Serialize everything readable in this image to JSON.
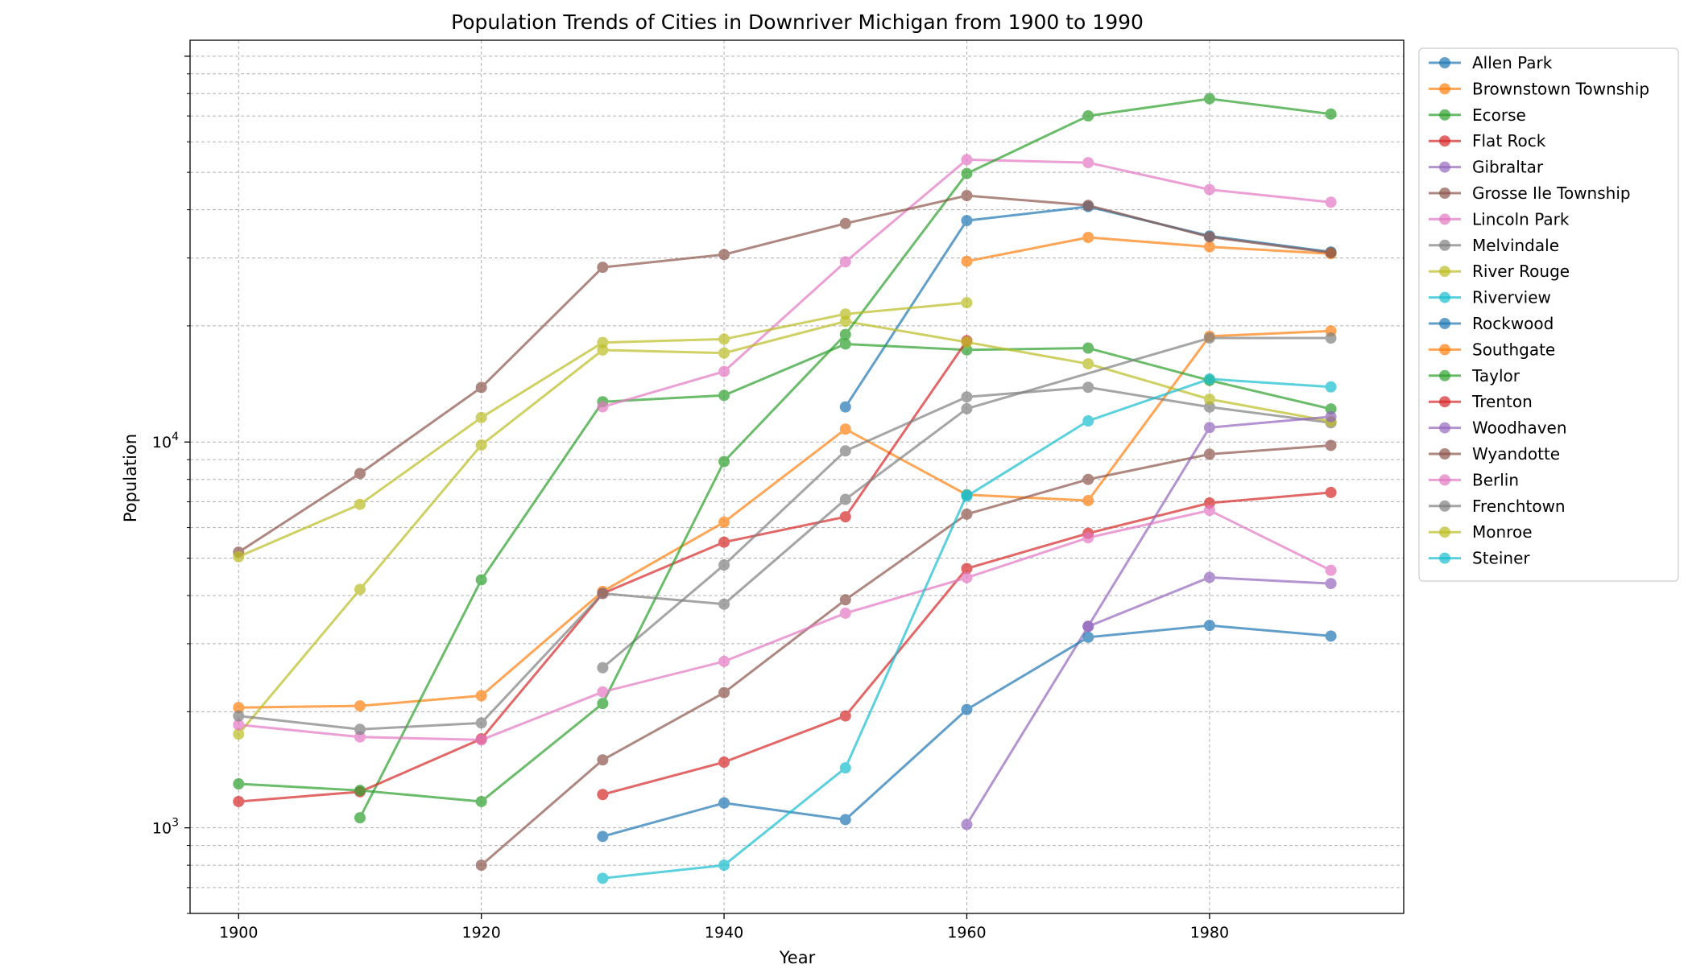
{
  "chart_data": {
    "type": "line",
    "title": "Population Trends of Cities in Downriver Michigan from 1900 to 1990",
    "xlabel": "Year",
    "ylabel": "Population",
    "yscale": "log",
    "xlim": [
      1896,
      1996
    ],
    "ylim": [
      600,
      110000
    ],
    "xticks": [
      1900,
      1920,
      1940,
      1960,
      1980
    ],
    "yticks": [
      {
        "value": 1000,
        "base": "10",
        "exp": "3"
      },
      {
        "value": 10000,
        "base": "10",
        "exp": "4"
      }
    ],
    "grid": true,
    "legend_position": "top-right",
    "series": [
      {
        "name": "Allen Park",
        "color": "#1f77b4",
        "points": [
          [
            1950,
            12329
          ],
          [
            1960,
            37494
          ],
          [
            1970,
            40747
          ],
          [
            1980,
            34196
          ],
          [
            1990,
            31092
          ]
        ]
      },
      {
        "name": "Brownstown Township",
        "color": "#ff7f0e",
        "points": [
          [
            1900,
            2050
          ],
          [
            1910,
            2070
          ],
          [
            1920,
            2200
          ],
          [
            1930,
            4100
          ],
          [
            1940,
            6200
          ],
          [
            1950,
            10800
          ],
          [
            1960,
            7300
          ],
          [
            1970,
            7050
          ],
          [
            1980,
            18800
          ],
          [
            1990,
            19400
          ]
        ]
      },
      {
        "name": "Ecorse",
        "color": "#2ca02c",
        "points": [
          [
            1910,
            1062
          ],
          [
            1920,
            4394
          ],
          [
            1930,
            12716
          ],
          [
            1940,
            13209
          ],
          [
            1950,
            17948
          ],
          [
            1960,
            17328
          ],
          [
            1970,
            17515
          ],
          [
            1980,
            14447
          ],
          [
            1990,
            12180
          ]
        ]
      },
      {
        "name": "Flat Rock",
        "color": "#d62728",
        "points": [
          [
            1900,
            1170
          ],
          [
            1910,
            1240
          ],
          [
            1920,
            1700
          ],
          [
            1930,
            4050
          ],
          [
            1940,
            5500
          ],
          [
            1950,
            6400
          ],
          [
            1960,
            18300
          ]
        ]
      },
      {
        "name": "Gibraltar",
        "color": "#9467bd",
        "points": [
          [
            1960,
            1020
          ],
          [
            1970,
            3325
          ],
          [
            1980,
            4458
          ],
          [
            1990,
            4297
          ]
        ]
      },
      {
        "name": "Grosse Ile Township",
        "color": "#8c564b",
        "points": [
          [
            1920,
            800
          ],
          [
            1930,
            1500
          ],
          [
            1940,
            2240
          ],
          [
            1950,
            3900
          ],
          [
            1960,
            6500
          ],
          [
            1970,
            8000
          ],
          [
            1980,
            9300
          ],
          [
            1990,
            9800
          ]
        ]
      },
      {
        "name": "Lincoln Park",
        "color": "#e377c2",
        "points": [
          [
            1930,
            12336
          ],
          [
            1940,
            15236
          ],
          [
            1950,
            29310
          ],
          [
            1960,
            53933
          ],
          [
            1970,
            52984
          ],
          [
            1980,
            45105
          ],
          [
            1990,
            41832
          ]
        ]
      },
      {
        "name": "Melvindale",
        "color": "#7f7f7f",
        "points": [
          [
            1930,
            2600
          ],
          [
            1940,
            4800
          ],
          [
            1950,
            9483
          ],
          [
            1960,
            13089
          ],
          [
            1970,
            13862
          ],
          [
            1980,
            12322
          ],
          [
            1990,
            11216
          ]
        ]
      },
      {
        "name": "River Rouge",
        "color": "#bcbd22",
        "points": [
          [
            1900,
            1750
          ],
          [
            1910,
            4150
          ],
          [
            1920,
            9822
          ],
          [
            1930,
            17314
          ],
          [
            1940,
            17008
          ],
          [
            1950,
            20549
          ],
          [
            1960,
            18147
          ],
          [
            1970,
            15947
          ],
          [
            1980,
            12912
          ],
          [
            1990,
            11314
          ]
        ]
      },
      {
        "name": "Riverview",
        "color": "#17becf",
        "points": [
          [
            1960,
            7237
          ],
          [
            1970,
            11342
          ],
          [
            1980,
            14569
          ],
          [
            1990,
            13894
          ]
        ]
      },
      {
        "name": "Rockwood",
        "color": "#1f77b4",
        "points": [
          [
            1930,
            950
          ],
          [
            1940,
            1160
          ],
          [
            1950,
            1050
          ],
          [
            1960,
            2026
          ],
          [
            1970,
            3119
          ],
          [
            1980,
            3346
          ],
          [
            1990,
            3141
          ]
        ]
      },
      {
        "name": "Southgate",
        "color": "#ff7f0e",
        "points": [
          [
            1960,
            29404
          ],
          [
            1970,
            33909
          ],
          [
            1980,
            32058
          ],
          [
            1990,
            30771
          ]
        ]
      },
      {
        "name": "Taylor",
        "color": "#2ca02c",
        "points": [
          [
            1900,
            1300
          ],
          [
            1910,
            1250
          ],
          [
            1920,
            1170
          ],
          [
            1930,
            2100
          ],
          [
            1940,
            8900
          ],
          [
            1950,
            19000
          ],
          [
            1960,
            49658
          ],
          [
            1970,
            70020
          ],
          [
            1980,
            77568
          ],
          [
            1990,
            70811
          ]
        ]
      },
      {
        "name": "Trenton",
        "color": "#d62728",
        "points": [
          [
            1930,
            1220
          ],
          [
            1940,
            1480
          ],
          [
            1950,
            1950
          ],
          [
            1960,
            4700
          ],
          [
            1970,
            5800
          ],
          [
            1980,
            6950
          ],
          [
            1990,
            7400
          ]
        ]
      },
      {
        "name": "Woodhaven",
        "color": "#9467bd",
        "points": [
          [
            1970,
            3330
          ],
          [
            1980,
            10902
          ],
          [
            1990,
            11631
          ]
        ]
      },
      {
        "name": "Wyandotte",
        "color": "#8c564b",
        "points": [
          [
            1900,
            5183
          ],
          [
            1910,
            8287
          ],
          [
            1920,
            13851
          ],
          [
            1930,
            28368
          ],
          [
            1940,
            30618
          ],
          [
            1950,
            36846
          ],
          [
            1960,
            43519
          ],
          [
            1970,
            41061
          ],
          [
            1980,
            34006
          ],
          [
            1990,
            30938
          ]
        ]
      },
      {
        "name": "Berlin",
        "color": "#e377c2",
        "points": [
          [
            1900,
            1850
          ],
          [
            1910,
            1720
          ],
          [
            1920,
            1690
          ],
          [
            1930,
            2250
          ],
          [
            1940,
            2700
          ],
          [
            1950,
            3600
          ],
          [
            1960,
            4450
          ],
          [
            1970,
            5650
          ],
          [
            1980,
            6650
          ],
          [
            1990,
            4650
          ]
        ]
      },
      {
        "name": "Frenchtown",
        "color": "#7f7f7f",
        "points": [
          [
            1900,
            1950
          ],
          [
            1910,
            1800
          ],
          [
            1920,
            1870
          ],
          [
            1930,
            4050
          ],
          [
            1940,
            3800
          ],
          [
            1950,
            7100
          ],
          [
            1960,
            12200
          ],
          [
            1980,
            18600
          ],
          [
            1990,
            18600
          ]
        ]
      },
      {
        "name": "Monroe",
        "color": "#bcbd22",
        "points": [
          [
            1900,
            5043
          ],
          [
            1910,
            6893
          ],
          [
            1920,
            11573
          ],
          [
            1930,
            18110
          ],
          [
            1940,
            18478
          ],
          [
            1950,
            21467
          ],
          [
            1960,
            22968
          ]
        ]
      },
      {
        "name": "Steiner",
        "color": "#17becf",
        "points": [
          [
            1930,
            740
          ],
          [
            1940,
            800
          ],
          [
            1950,
            1430
          ],
          [
            1960,
            7300
          ]
        ]
      }
    ]
  }
}
